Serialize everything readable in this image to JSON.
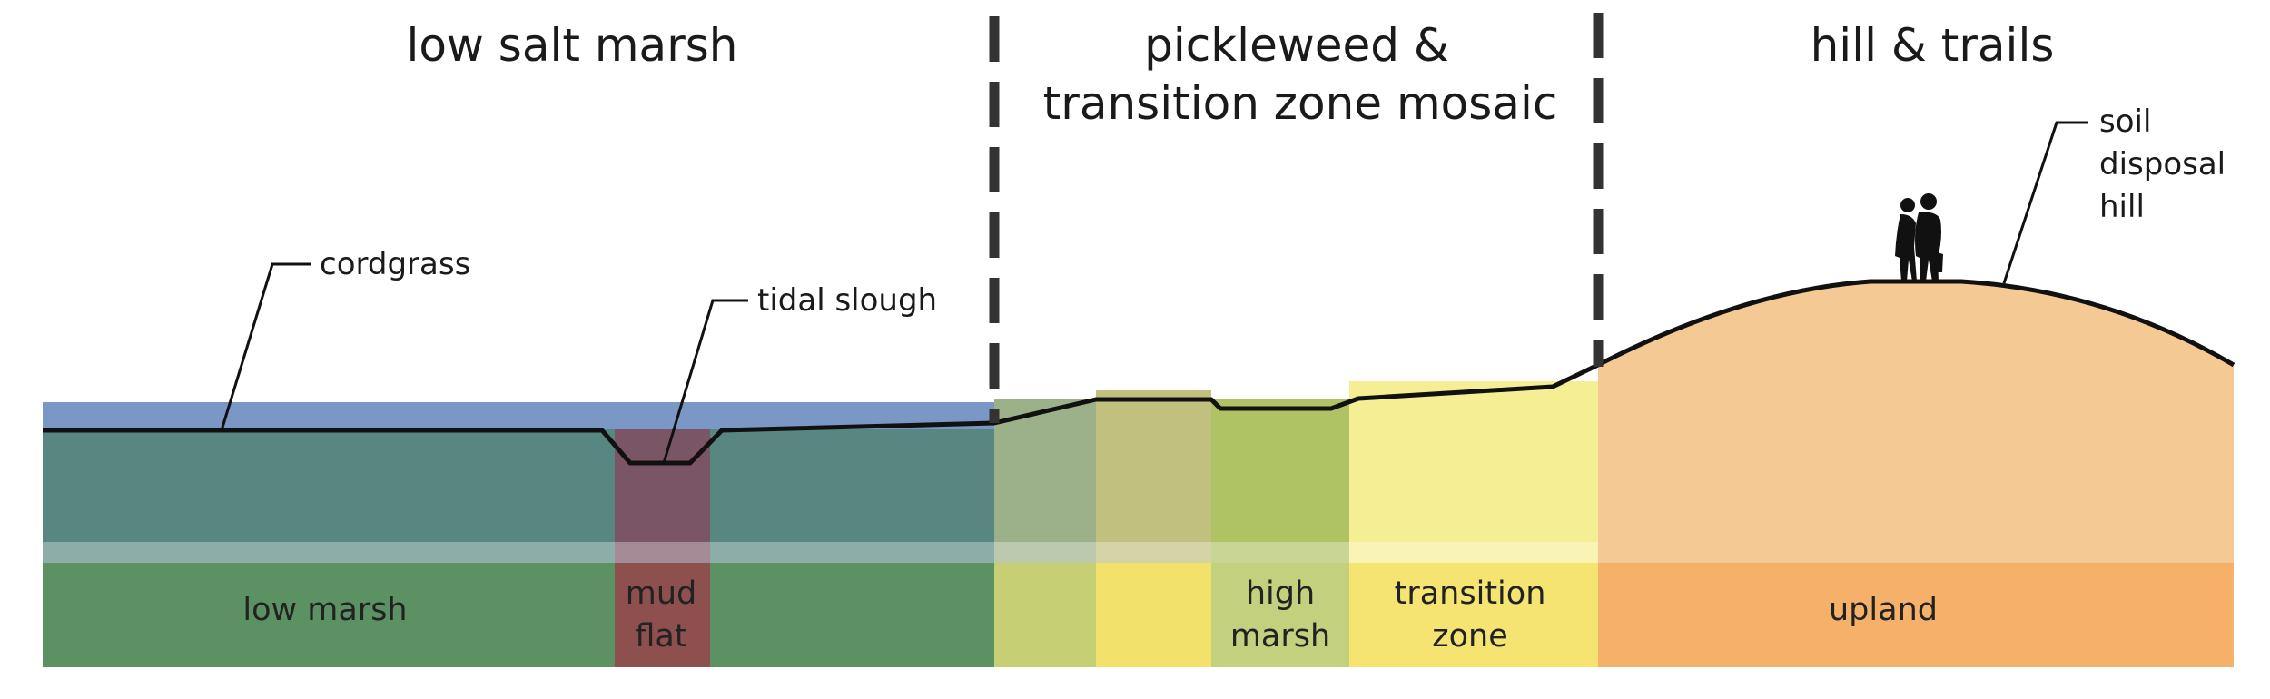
{
  "headers": {
    "low_salt_marsh": "low salt marsh",
    "pickleweed_line1": "pickleweed &",
    "pickleweed_line2": "transition zone mosaic",
    "hill_trails": "hill & trails"
  },
  "callouts": {
    "cordgrass": "cordgrass",
    "tidal_slough": "tidal slough",
    "soil_line1": "soil",
    "soil_line2": "disposal",
    "soil_line3": "hill"
  },
  "zones": {
    "low_marsh": "low marsh",
    "mud_line1": "mud",
    "mud_line2": "flat",
    "high_line1": "high",
    "high_line2": "marsh",
    "transition_line1": "transition",
    "transition_line2": "zone",
    "upland": "upland"
  },
  "colors": {
    "water": "#7b97c6",
    "low_marsh_upper": "#578780",
    "low_marsh_lower": "#5c9163",
    "mud_flat_upper": "#7a5565",
    "mud_flat_lower": "#8e4f4f",
    "mosaic_1_upper": "#9cb08a",
    "mosaic_1_lower": "#c6cf74",
    "mosaic_2_upper": "#c1c07e",
    "mosaic_2_lower": "#f2e16a",
    "high_marsh_upper": "#afc264",
    "high_marsh_lower": "#c3d17e",
    "transition_upper": "#f6ee94",
    "transition_lower": "#f5e471",
    "upland_upper": "#f5c994",
    "upland_lower": "#f5b169",
    "pale_band": "#ffffff",
    "ground_line": "#111111",
    "divider": "#333333"
  },
  "icons": {
    "hikers": "hikers-silhouette-icon"
  }
}
